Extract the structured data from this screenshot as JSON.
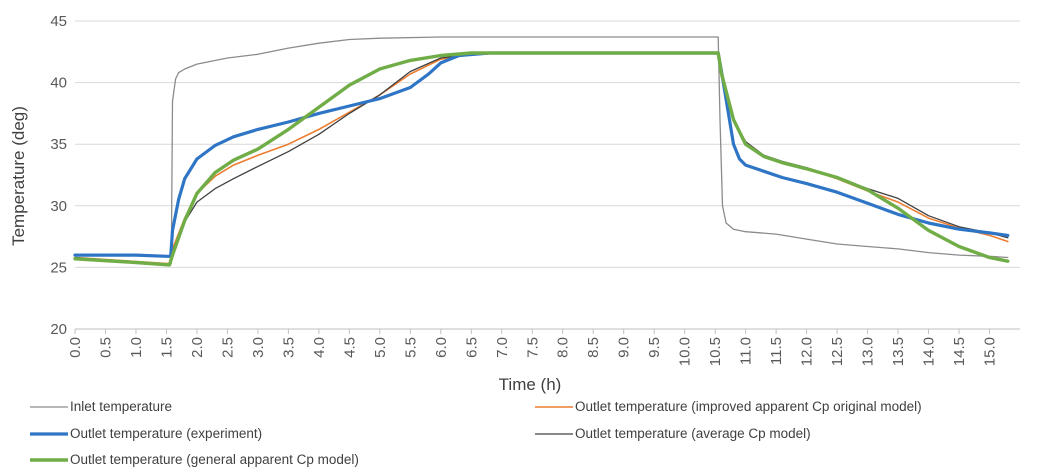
{
  "chart_data": {
    "type": "line",
    "title": "",
    "xlabel": "Time (h)",
    "ylabel": "Temperature (deg)",
    "xlim": [
      0,
      15.5
    ],
    "ylim": [
      20,
      45
    ],
    "grid": true,
    "legend_position": "bottom",
    "x_tick_labels": [
      "0.0",
      "0.5",
      "1.0",
      "1.5",
      "2.0",
      "2.5",
      "3.0",
      "3.5",
      "4.0",
      "4.5",
      "5.0",
      "5.5",
      "6.0",
      "6.5",
      "7.0",
      "7.5",
      "8.0",
      "8.5",
      "9.0",
      "9.5",
      "10.0",
      "10.5",
      "11.0",
      "11.5",
      "12.0",
      "12.5",
      "13.0",
      "13.5",
      "14.0",
      "14.5",
      "15.0"
    ],
    "y_tick_labels": [
      "20",
      "25",
      "30",
      "35",
      "40",
      "45"
    ],
    "series": [
      {
        "name": "Inlet temperature",
        "color": "#8c8c8c",
        "points": [
          [
            0,
            25.7
          ],
          [
            1.5,
            25.2
          ],
          [
            1.58,
            25.3
          ],
          [
            1.6,
            38.5
          ],
          [
            1.65,
            40.3
          ],
          [
            1.7,
            40.8
          ],
          [
            1.8,
            41.1
          ],
          [
            2.0,
            41.5
          ],
          [
            2.5,
            42.0
          ],
          [
            3.0,
            42.3
          ],
          [
            3.5,
            42.8
          ],
          [
            4.0,
            43.2
          ],
          [
            4.5,
            43.5
          ],
          [
            5.0,
            43.6
          ],
          [
            6.0,
            43.7
          ],
          [
            7.0,
            43.7
          ],
          [
            8.0,
            43.7
          ],
          [
            9.0,
            43.7
          ],
          [
            10.0,
            43.7
          ],
          [
            10.55,
            43.7
          ],
          [
            10.58,
            37.0
          ],
          [
            10.62,
            30.0
          ],
          [
            10.68,
            28.6
          ],
          [
            10.8,
            28.1
          ],
          [
            11.0,
            27.9
          ],
          [
            11.5,
            27.7
          ],
          [
            12.0,
            27.3
          ],
          [
            12.5,
            26.9
          ],
          [
            13.0,
            26.7
          ],
          [
            13.5,
            26.5
          ],
          [
            14.0,
            26.2
          ],
          [
            14.5,
            26.0
          ],
          [
            15.0,
            25.9
          ],
          [
            15.3,
            25.8
          ]
        ]
      },
      {
        "name": "Outlet temperature (improved apparent Cp original model)",
        "color": "#ed7d31",
        "points": [
          [
            0,
            25.8
          ],
          [
            1.55,
            25.3
          ],
          [
            1.6,
            26.5
          ],
          [
            1.8,
            29.0
          ],
          [
            2.0,
            31.0
          ],
          [
            2.3,
            32.4
          ],
          [
            2.6,
            33.3
          ],
          [
            3.0,
            34.1
          ],
          [
            3.5,
            35.0
          ],
          [
            4.0,
            36.2
          ],
          [
            4.5,
            37.6
          ],
          [
            5.0,
            39.0
          ],
          [
            5.5,
            40.7
          ],
          [
            6.0,
            41.9
          ],
          [
            6.5,
            42.3
          ],
          [
            7.0,
            42.4
          ],
          [
            8.0,
            42.4
          ],
          [
            9.0,
            42.4
          ],
          [
            10.0,
            42.4
          ],
          [
            10.55,
            42.4
          ],
          [
            10.6,
            40.5
          ],
          [
            10.8,
            37.0
          ],
          [
            11.0,
            35.2
          ],
          [
            11.3,
            34.0
          ],
          [
            11.6,
            33.5
          ],
          [
            12.0,
            33.0
          ],
          [
            12.5,
            32.2
          ],
          [
            13.0,
            31.2
          ],
          [
            13.5,
            30.3
          ],
          [
            14.0,
            29.0
          ],
          [
            14.5,
            28.2
          ],
          [
            15.0,
            27.6
          ],
          [
            15.3,
            27.1
          ]
        ]
      },
      {
        "name": "Outlet temperature (experiment)",
        "color": "#2e75c6",
        "points": [
          [
            0,
            26.0
          ],
          [
            1.0,
            26.0
          ],
          [
            1.5,
            25.9
          ],
          [
            1.57,
            25.9
          ],
          [
            1.6,
            28.0
          ],
          [
            1.7,
            30.5
          ],
          [
            1.8,
            32.2
          ],
          [
            2.0,
            33.8
          ],
          [
            2.3,
            34.9
          ],
          [
            2.6,
            35.6
          ],
          [
            3.0,
            36.2
          ],
          [
            3.5,
            36.8
          ],
          [
            4.0,
            37.5
          ],
          [
            4.5,
            38.1
          ],
          [
            5.0,
            38.7
          ],
          [
            5.5,
            39.6
          ],
          [
            5.8,
            40.7
          ],
          [
            6.0,
            41.6
          ],
          [
            6.3,
            42.2
          ],
          [
            6.8,
            42.4
          ],
          [
            7.5,
            42.4
          ],
          [
            8.5,
            42.4
          ],
          [
            9.5,
            42.4
          ],
          [
            10.55,
            42.4
          ],
          [
            10.6,
            41.0
          ],
          [
            10.7,
            38.0
          ],
          [
            10.8,
            35.0
          ],
          [
            10.9,
            33.8
          ],
          [
            11.0,
            33.3
          ],
          [
            11.3,
            32.8
          ],
          [
            11.6,
            32.3
          ],
          [
            12.0,
            31.8
          ],
          [
            12.5,
            31.1
          ],
          [
            13.0,
            30.2
          ],
          [
            13.5,
            29.3
          ],
          [
            14.0,
            28.6
          ],
          [
            14.5,
            28.1
          ],
          [
            15.0,
            27.8
          ],
          [
            15.3,
            27.6
          ]
        ]
      },
      {
        "name": "Outlet temperature (average Cp model)",
        "color": "#404040",
        "points": [
          [
            0,
            25.8
          ],
          [
            1.55,
            25.2
          ],
          [
            1.6,
            26.3
          ],
          [
            1.8,
            28.7
          ],
          [
            2.0,
            30.3
          ],
          [
            2.3,
            31.4
          ],
          [
            2.6,
            32.2
          ],
          [
            3.0,
            33.2
          ],
          [
            3.5,
            34.4
          ],
          [
            4.0,
            35.8
          ],
          [
            4.5,
            37.5
          ],
          [
            5.0,
            39.0
          ],
          [
            5.5,
            40.9
          ],
          [
            6.0,
            42.0
          ],
          [
            6.5,
            42.3
          ],
          [
            7.0,
            42.4
          ],
          [
            8.0,
            42.4
          ],
          [
            9.0,
            42.4
          ],
          [
            10.0,
            42.4
          ],
          [
            10.55,
            42.4
          ],
          [
            10.6,
            40.5
          ],
          [
            10.8,
            37.0
          ],
          [
            11.0,
            35.2
          ],
          [
            11.3,
            34.1
          ],
          [
            11.6,
            33.6
          ],
          [
            12.0,
            33.1
          ],
          [
            12.5,
            32.3
          ],
          [
            13.0,
            31.4
          ],
          [
            13.5,
            30.6
          ],
          [
            14.0,
            29.2
          ],
          [
            14.5,
            28.3
          ],
          [
            15.0,
            27.8
          ],
          [
            15.3,
            27.4
          ]
        ]
      },
      {
        "name": "Outlet temperature (general apparent Cp model)",
        "color": "#70ad47",
        "points": [
          [
            0,
            25.7
          ],
          [
            1.0,
            25.4
          ],
          [
            1.55,
            25.2
          ],
          [
            1.6,
            26.0
          ],
          [
            1.8,
            28.8
          ],
          [
            2.0,
            31.0
          ],
          [
            2.3,
            32.7
          ],
          [
            2.6,
            33.7
          ],
          [
            3.0,
            34.6
          ],
          [
            3.5,
            36.2
          ],
          [
            4.0,
            38.0
          ],
          [
            4.5,
            39.8
          ],
          [
            5.0,
            41.1
          ],
          [
            5.5,
            41.8
          ],
          [
            6.0,
            42.2
          ],
          [
            6.5,
            42.4
          ],
          [
            7.0,
            42.4
          ],
          [
            8.0,
            42.4
          ],
          [
            9.0,
            42.4
          ],
          [
            10.0,
            42.4
          ],
          [
            10.55,
            42.4
          ],
          [
            10.6,
            40.8
          ],
          [
            10.8,
            37.0
          ],
          [
            11.0,
            35.0
          ],
          [
            11.3,
            34.0
          ],
          [
            11.6,
            33.5
          ],
          [
            12.0,
            33.0
          ],
          [
            12.5,
            32.3
          ],
          [
            13.0,
            31.3
          ],
          [
            13.5,
            29.8
          ],
          [
            14.0,
            28.0
          ],
          [
            14.5,
            26.7
          ],
          [
            15.0,
            25.8
          ],
          [
            15.3,
            25.5
          ]
        ]
      }
    ]
  }
}
